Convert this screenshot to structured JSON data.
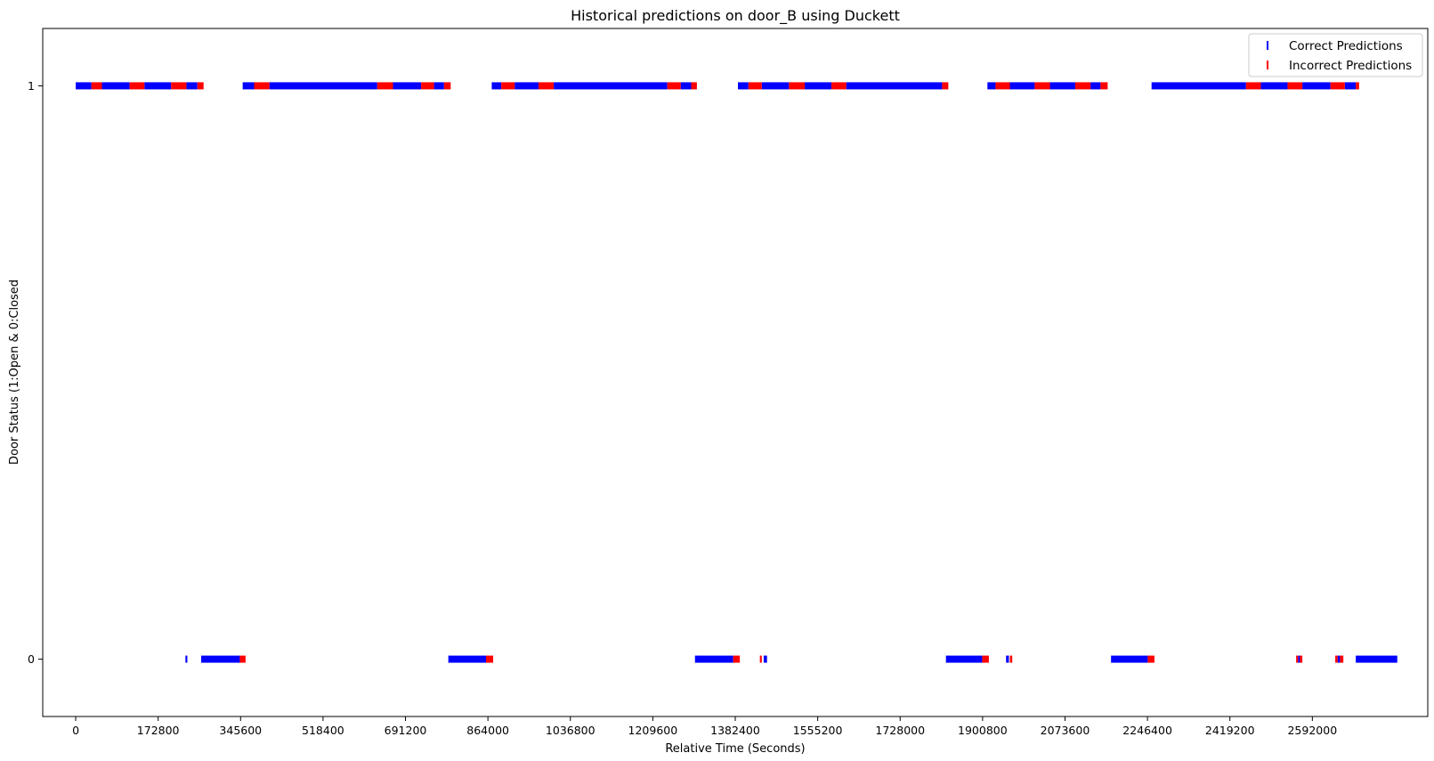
{
  "chart_data": {
    "type": "scatter",
    "title": "Historical predictions on door_B using Duckett",
    "xlabel": "Relative Time (Seconds)",
    "ylabel": "Door Status (1:Open & 0:Closed",
    "xlim": [
      -69120,
      2833920
    ],
    "ylim": [
      -0.1,
      1.1
    ],
    "x_ticks": [
      0,
      172800,
      345600,
      518400,
      691200,
      864000,
      1036800,
      1209600,
      1382400,
      1555200,
      1728000,
      1900800,
      2073600,
      2246400,
      2419200,
      2592000
    ],
    "x_tick_labels": [
      "0",
      "172800",
      "345600",
      "518400",
      "691200",
      "864000",
      "1036800",
      "1209600",
      "1382400",
      "1555200",
      "1728000",
      "1900800",
      "2073600",
      "2246400",
      "2419200",
      "2592000"
    ],
    "y_ticks": [
      0,
      1
    ],
    "y_tick_labels": [
      "0",
      "1"
    ],
    "legend_position": "top-right",
    "grid": false,
    "series": [
      {
        "name": "Correct Predictions",
        "color": "#0000ff",
        "marker": "vertical-line",
        "segments": [
          {
            "y": 1,
            "start": 0,
            "end": 33000
          },
          {
            "y": 1,
            "start": 55000,
            "end": 113000
          },
          {
            "y": 1,
            "start": 144000,
            "end": 200000
          },
          {
            "y": 1,
            "start": 232000,
            "end": 255000
          },
          {
            "y": 1,
            "start": 350000,
            "end": 374000
          },
          {
            "y": 1,
            "start": 406000,
            "end": 632000
          },
          {
            "y": 1,
            "start": 665000,
            "end": 724000
          },
          {
            "y": 1,
            "start": 751000,
            "end": 772000
          },
          {
            "y": 1,
            "start": 872000,
            "end": 892000
          },
          {
            "y": 1,
            "start": 920000,
            "end": 970000
          },
          {
            "y": 1,
            "start": 1002000,
            "end": 1240000
          },
          {
            "y": 1,
            "start": 1268000,
            "end": 1290000
          },
          {
            "y": 1,
            "start": 1388000,
            "end": 1410000
          },
          {
            "y": 1,
            "start": 1438000,
            "end": 1495000
          },
          {
            "y": 1,
            "start": 1528000,
            "end": 1584000
          },
          {
            "y": 1,
            "start": 1615000,
            "end": 1816000
          },
          {
            "y": 1,
            "start": 1911000,
            "end": 1928000
          },
          {
            "y": 1,
            "start": 1958000,
            "end": 2010000
          },
          {
            "y": 1,
            "start": 2042000,
            "end": 2095000
          },
          {
            "y": 1,
            "start": 2127000,
            "end": 2148000
          },
          {
            "y": 1,
            "start": 2255000,
            "end": 2453000
          },
          {
            "y": 1,
            "start": 2484000,
            "end": 2540000
          },
          {
            "y": 1,
            "start": 2571000,
            "end": 2630000
          },
          {
            "y": 1,
            "start": 2660000,
            "end": 2683000
          },
          {
            "y": 0,
            "start": 230000,
            "end": 234000
          },
          {
            "y": 0,
            "start": 263000,
            "end": 344000
          },
          {
            "y": 0,
            "start": 781000,
            "end": 860000
          },
          {
            "y": 0,
            "start": 1298000,
            "end": 1378000
          },
          {
            "y": 0,
            "start": 1442000,
            "end": 1449000
          },
          {
            "y": 0,
            "start": 1824000,
            "end": 1900000
          },
          {
            "y": 0,
            "start": 1950000,
            "end": 1956000
          },
          {
            "y": 0,
            "start": 2170000,
            "end": 2247000
          },
          {
            "y": 0,
            "start": 2562000,
            "end": 2566000
          },
          {
            "y": 0,
            "start": 2645000,
            "end": 2650000
          },
          {
            "y": 0,
            "start": 2683000,
            "end": 2770000
          }
        ]
      },
      {
        "name": "Incorrect Predictions",
        "color": "#ff0000",
        "marker": "vertical-line",
        "segments": [
          {
            "y": 1,
            "start": 33000,
            "end": 55000
          },
          {
            "y": 1,
            "start": 113000,
            "end": 144000
          },
          {
            "y": 1,
            "start": 200000,
            "end": 232000
          },
          {
            "y": 1,
            "start": 255000,
            "end": 268000
          },
          {
            "y": 1,
            "start": 374000,
            "end": 406000
          },
          {
            "y": 1,
            "start": 632000,
            "end": 665000
          },
          {
            "y": 1,
            "start": 724000,
            "end": 751000
          },
          {
            "y": 1,
            "start": 772000,
            "end": 786000
          },
          {
            "y": 1,
            "start": 892000,
            "end": 920000
          },
          {
            "y": 1,
            "start": 970000,
            "end": 1002000
          },
          {
            "y": 1,
            "start": 1240000,
            "end": 1268000
          },
          {
            "y": 1,
            "start": 1290000,
            "end": 1302000
          },
          {
            "y": 1,
            "start": 1410000,
            "end": 1438000
          },
          {
            "y": 1,
            "start": 1495000,
            "end": 1528000
          },
          {
            "y": 1,
            "start": 1584000,
            "end": 1615000
          },
          {
            "y": 1,
            "start": 1816000,
            "end": 1829000
          },
          {
            "y": 1,
            "start": 1928000,
            "end": 1958000
          },
          {
            "y": 1,
            "start": 2010000,
            "end": 2042000
          },
          {
            "y": 1,
            "start": 2095000,
            "end": 2127000
          },
          {
            "y": 1,
            "start": 2148000,
            "end": 2163000
          },
          {
            "y": 1,
            "start": 2453000,
            "end": 2484000
          },
          {
            "y": 1,
            "start": 2540000,
            "end": 2571000
          },
          {
            "y": 1,
            "start": 2630000,
            "end": 2660000
          },
          {
            "y": 1,
            "start": 2683000,
            "end": 2690000
          },
          {
            "y": 0,
            "start": 344000,
            "end": 356000
          },
          {
            "y": 0,
            "start": 860000,
            "end": 875000
          },
          {
            "y": 0,
            "start": 1378000,
            "end": 1392000
          },
          {
            "y": 0,
            "start": 1434000,
            "end": 1438000
          },
          {
            "y": 0,
            "start": 1900000,
            "end": 1914000
          },
          {
            "y": 0,
            "start": 1958000,
            "end": 1963000
          },
          {
            "y": 0,
            "start": 2247000,
            "end": 2261000
          },
          {
            "y": 0,
            "start": 2558000,
            "end": 2562000
          },
          {
            "y": 0,
            "start": 2566000,
            "end": 2571000
          },
          {
            "y": 0,
            "start": 2640000,
            "end": 2645000
          },
          {
            "y": 0,
            "start": 2650000,
            "end": 2657000
          }
        ]
      }
    ]
  }
}
